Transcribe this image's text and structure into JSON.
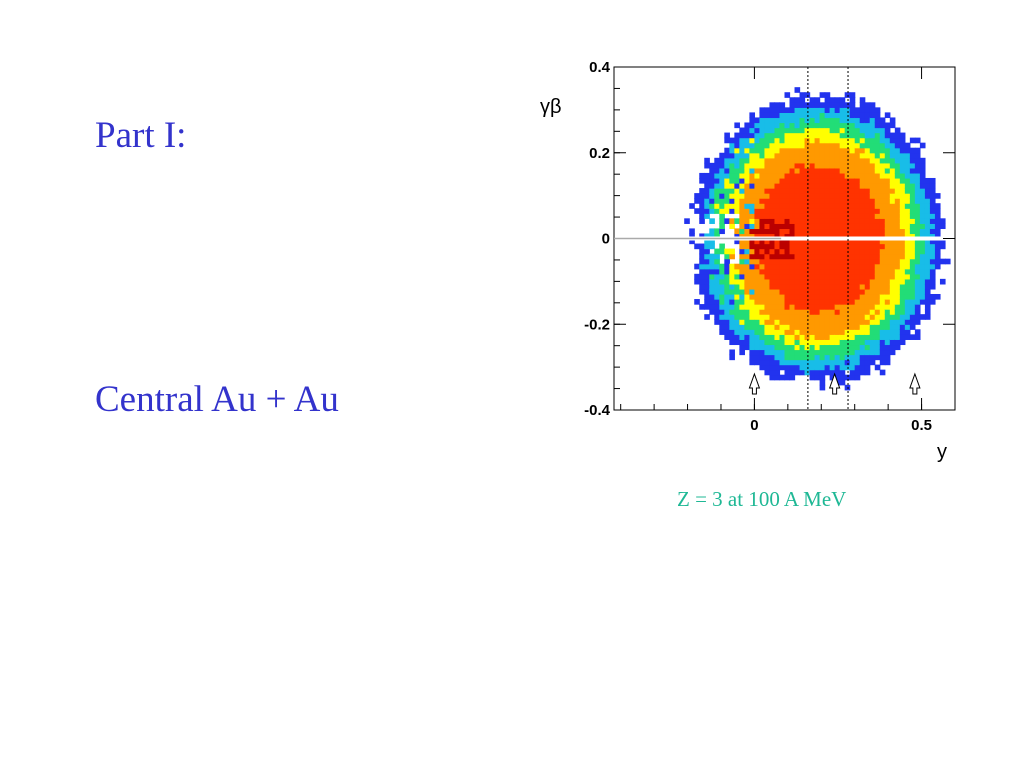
{
  "slide": {
    "heading": "Part I:",
    "subheading": "Central Au + Au",
    "caption": "Z = 3 at 100 A MeV",
    "text_color": "#3333cc",
    "caption_color": "#1fb895"
  },
  "chart_data": {
    "type": "heatmap",
    "title": "",
    "xlabel": "y",
    "ylabel": "γβ",
    "xlim": [
      -0.42,
      0.6
    ],
    "ylim": [
      -0.4,
      0.4
    ],
    "x_ticks": [
      {
        "value": 0,
        "label": "0"
      },
      {
        "value": 0.5,
        "label": "0.5"
      }
    ],
    "y_ticks": [
      {
        "value": 0.4,
        "label": "0.4"
      },
      {
        "value": 0.2,
        "label": "0.2"
      },
      {
        "value": 0,
        "label": "0"
      },
      {
        "value": -0.2,
        "label": "-0.2"
      },
      {
        "value": -0.4,
        "label": "-0.4"
      }
    ],
    "grid": false,
    "colorscale": [
      "#2233ee",
      "#18bde8",
      "#22dd77",
      "#ffff00",
      "#ff9900",
      "#ff3300",
      "#bb0000"
    ],
    "distribution": {
      "center_y": 0.19,
      "shell_extent_y": 0.37,
      "shell_extent_gb": 0.33
    },
    "vertical_lines": [
      0.16,
      0.28
    ],
    "arrow_markers": [
      0,
      0.24,
      0.48
    ],
    "horizontal_cut_line": 0
  }
}
